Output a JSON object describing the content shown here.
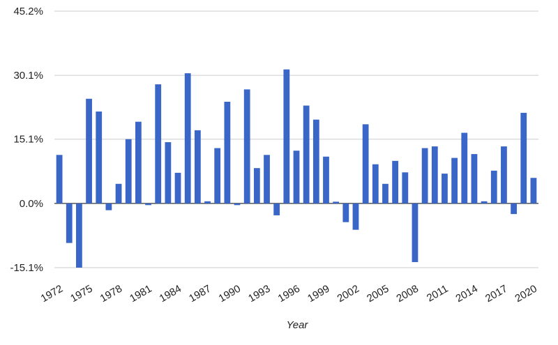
{
  "chart_data": {
    "type": "bar",
    "title": "",
    "xlabel": "Year",
    "ylabel": "",
    "ylim": [
      -15.1,
      45.2
    ],
    "y_ticks": [
      -15.1,
      0.0,
      15.1,
      30.1,
      45.2
    ],
    "y_tick_labels": [
      "-15.1%",
      "0.0%",
      "15.1%",
      "30.1%",
      "45.2%"
    ],
    "x_tick_labels": [
      "1972",
      "1975",
      "1978",
      "1981",
      "1984",
      "1987",
      "1990",
      "1993",
      "1996",
      "1999",
      "2002",
      "2005",
      "2008",
      "2011",
      "2014",
      "2017",
      "2020"
    ],
    "grid": true,
    "bar_color": "#3A66C8",
    "categories": [
      1972,
      1973,
      1974,
      1975,
      1976,
      1977,
      1978,
      1979,
      1980,
      1981,
      1982,
      1983,
      1984,
      1985,
      1986,
      1987,
      1988,
      1989,
      1990,
      1991,
      1992,
      1993,
      1994,
      1995,
      1996,
      1997,
      1998,
      1999,
      2000,
      2001,
      2002,
      2003,
      2004,
      2005,
      2006,
      2007,
      2008,
      2009,
      2010,
      2011,
      2012,
      2013,
      2014,
      2015,
      2016,
      2017,
      2018,
      2019,
      2020
    ],
    "values": [
      11.4,
      -9.3,
      -15.1,
      24.6,
      21.6,
      -1.6,
      4.6,
      15.1,
      19.2,
      -0.4,
      28.0,
      14.4,
      7.2,
      30.6,
      17.2,
      0.5,
      13.0,
      23.9,
      -0.4,
      26.8,
      8.3,
      11.4,
      -2.8,
      31.5,
      12.4,
      23.0,
      19.7,
      11.0,
      0.4,
      -4.4,
      -6.2,
      18.6,
      9.2,
      4.6,
      10.0,
      7.3,
      -13.8,
      13.0,
      13.4,
      7.0,
      10.7,
      16.6,
      11.6,
      0.5,
      7.7,
      13.4,
      -2.5,
      21.3,
      6.0
    ]
  }
}
